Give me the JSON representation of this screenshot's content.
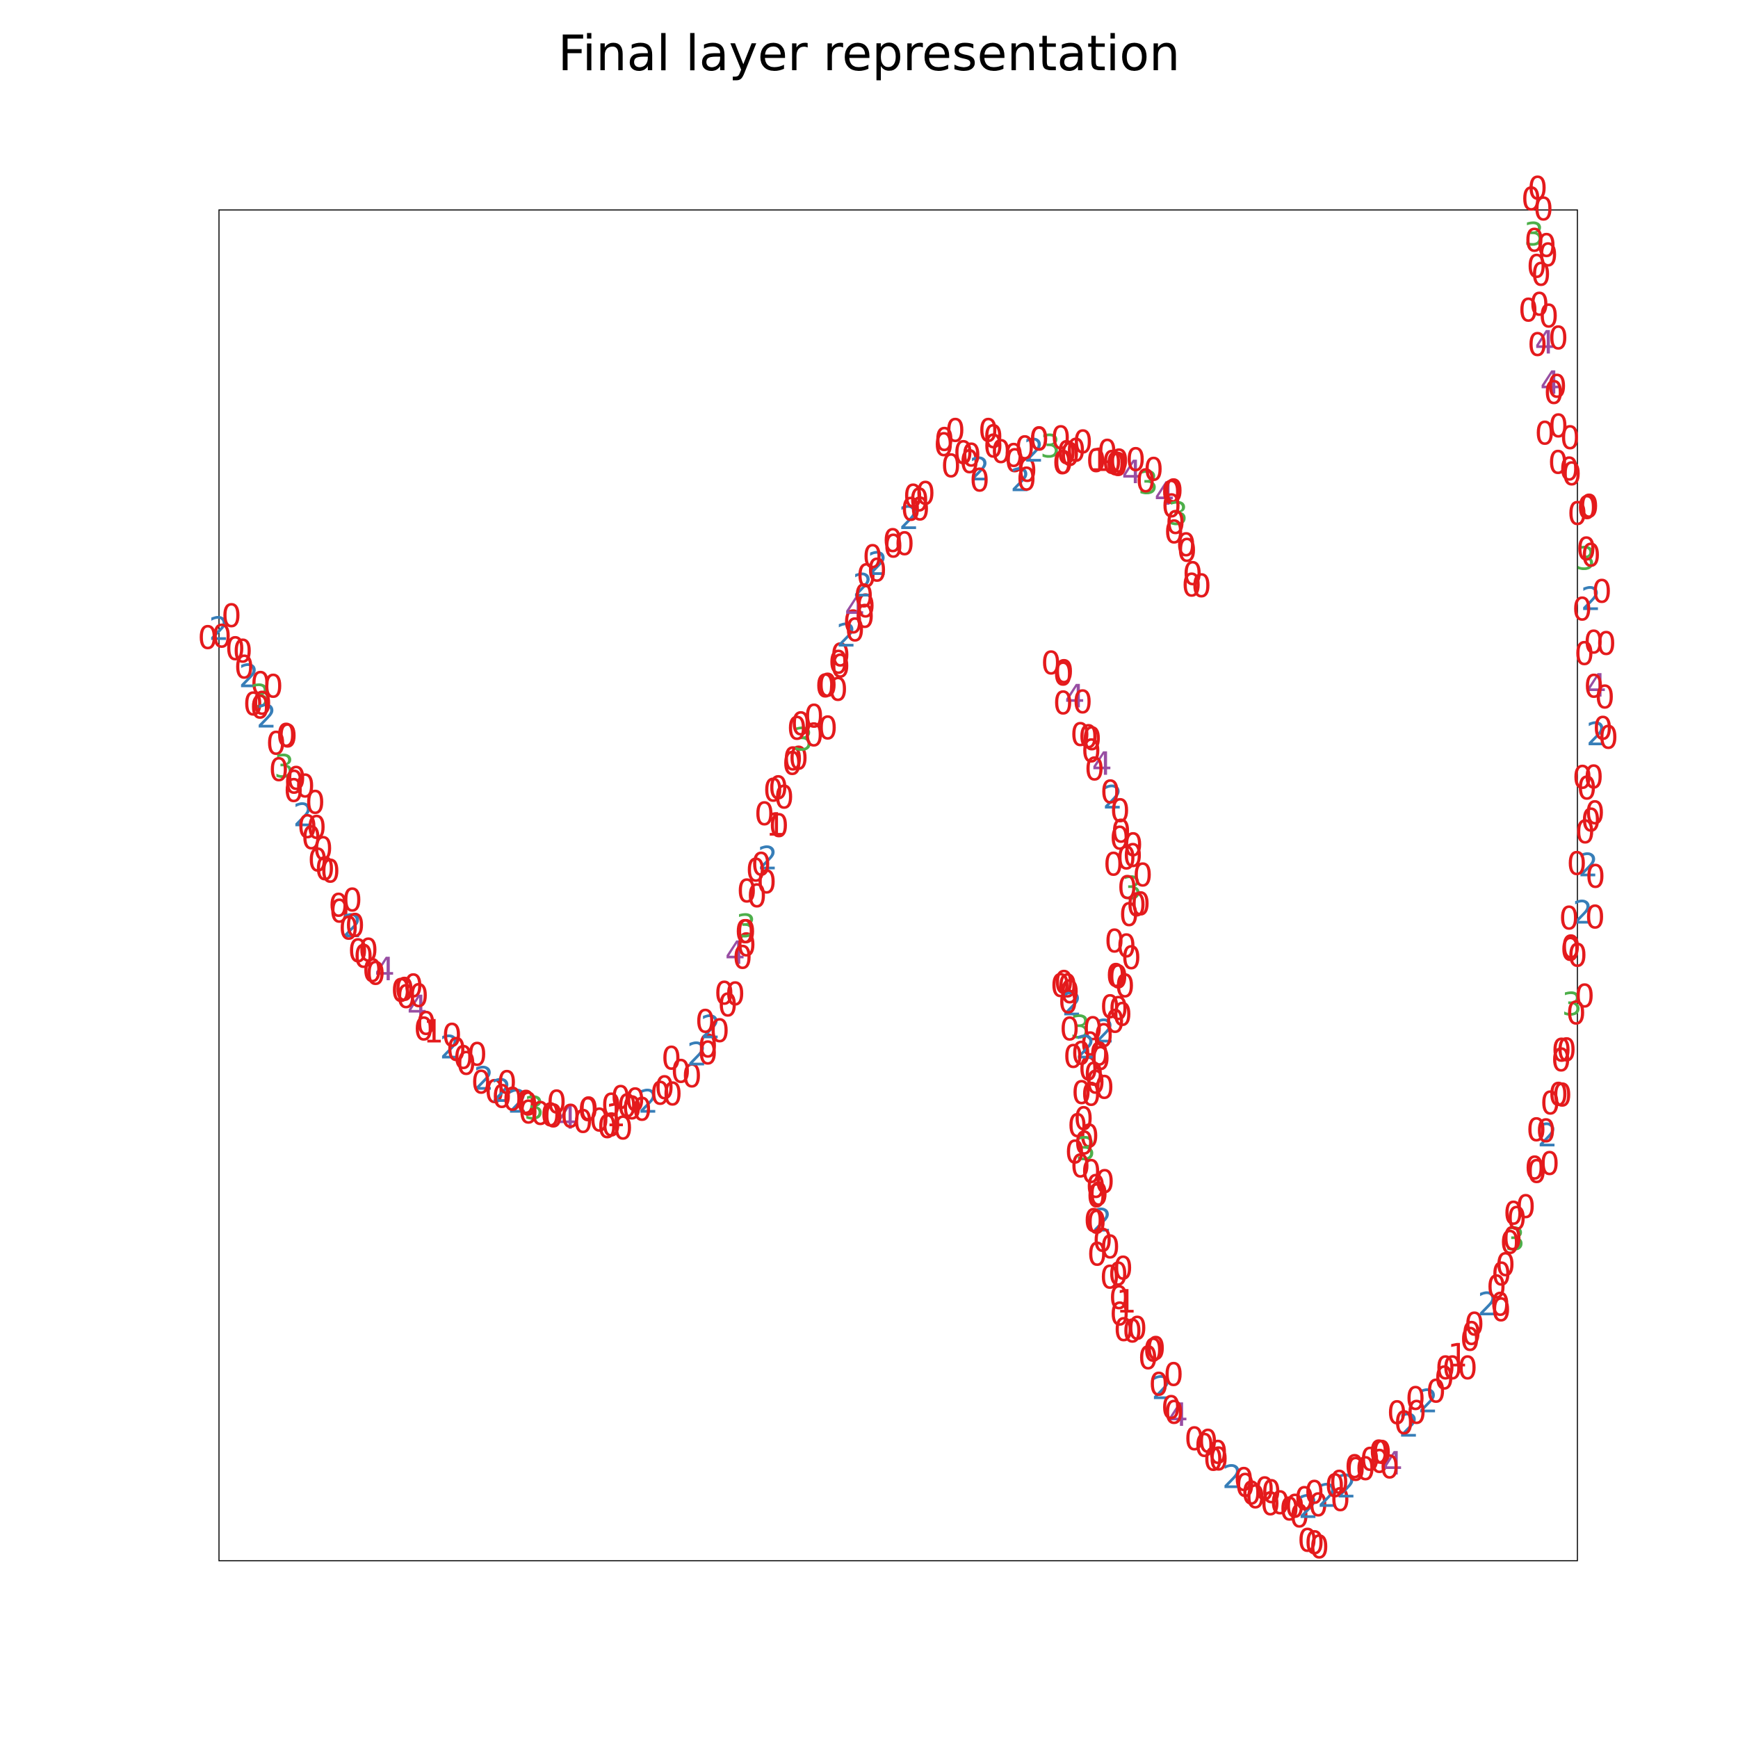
{
  "chart_data": {
    "type": "scatter",
    "title": "Final layer representation",
    "xlabel": "",
    "ylabel": "",
    "xlim": [
      0,
      1
    ],
    "ylim": [
      0,
      1
    ],
    "ticks": "none",
    "grid": false,
    "legend": "none",
    "marker": "digit-label",
    "colors": {
      "0": "#e41a1c",
      "1": "#e41a1c",
      "2": "#377eb8",
      "3": "#4daf4a",
      "4": "#984ea3"
    },
    "curve_points": [
      {
        "x": 0.0,
        "y": 0.69,
        "label": "2"
      },
      {
        "x": 0.012,
        "y": 0.675,
        "label": "0"
      },
      {
        "x": 0.022,
        "y": 0.655,
        "label": "2"
      },
      {
        "x": 0.03,
        "y": 0.64,
        "label": "3"
      },
      {
        "x": 0.035,
        "y": 0.625,
        "label": "2"
      },
      {
        "x": 0.042,
        "y": 0.605,
        "label": "0"
      },
      {
        "x": 0.048,
        "y": 0.588,
        "label": "3"
      },
      {
        "x": 0.055,
        "y": 0.57,
        "label": "0"
      },
      {
        "x": 0.062,
        "y": 0.552,
        "label": "2"
      },
      {
        "x": 0.068,
        "y": 0.535,
        "label": "0"
      },
      {
        "x": 0.078,
        "y": 0.512,
        "label": "0"
      },
      {
        "x": 0.088,
        "y": 0.485,
        "label": "0"
      },
      {
        "x": 0.098,
        "y": 0.47,
        "label": "2"
      },
      {
        "x": 0.11,
        "y": 0.452,
        "label": "0"
      },
      {
        "x": 0.122,
        "y": 0.438,
        "label": "4"
      },
      {
        "x": 0.134,
        "y": 0.422,
        "label": "0"
      },
      {
        "x": 0.146,
        "y": 0.41,
        "label": "4"
      },
      {
        "x": 0.158,
        "y": 0.392,
        "label": "1"
      },
      {
        "x": 0.17,
        "y": 0.38,
        "label": "2"
      },
      {
        "x": 0.182,
        "y": 0.368,
        "label": "0"
      },
      {
        "x": 0.195,
        "y": 0.357,
        "label": "2"
      },
      {
        "x": 0.208,
        "y": 0.348,
        "label": "2"
      },
      {
        "x": 0.22,
        "y": 0.34,
        "label": "2"
      },
      {
        "x": 0.232,
        "y": 0.335,
        "label": "3"
      },
      {
        "x": 0.244,
        "y": 0.33,
        "label": "0"
      },
      {
        "x": 0.256,
        "y": 0.328,
        "label": "4"
      },
      {
        "x": 0.268,
        "y": 0.325,
        "label": "0"
      },
      {
        "x": 0.28,
        "y": 0.326,
        "label": "0"
      },
      {
        "x": 0.292,
        "y": 0.33,
        "label": "1"
      },
      {
        "x": 0.304,
        "y": 0.335,
        "label": "0"
      },
      {
        "x": 0.316,
        "y": 0.34,
        "label": "2"
      },
      {
        "x": 0.328,
        "y": 0.35,
        "label": "0"
      },
      {
        "x": 0.34,
        "y": 0.362,
        "label": "0"
      },
      {
        "x": 0.352,
        "y": 0.375,
        "label": "2"
      },
      {
        "x": 0.362,
        "y": 0.395,
        "label": "2"
      },
      {
        "x": 0.372,
        "y": 0.42,
        "label": "0"
      },
      {
        "x": 0.38,
        "y": 0.45,
        "label": "4"
      },
      {
        "x": 0.388,
        "y": 0.47,
        "label": "3"
      },
      {
        "x": 0.396,
        "y": 0.492,
        "label": "0"
      },
      {
        "x": 0.404,
        "y": 0.52,
        "label": "2"
      },
      {
        "x": 0.41,
        "y": 0.545,
        "label": "1"
      },
      {
        "x": 0.416,
        "y": 0.565,
        "label": "0"
      },
      {
        "x": 0.422,
        "y": 0.59,
        "label": "0"
      },
      {
        "x": 0.43,
        "y": 0.608,
        "label": "3"
      },
      {
        "x": 0.438,
        "y": 0.625,
        "label": "0"
      },
      {
        "x": 0.448,
        "y": 0.648,
        "label": "0"
      },
      {
        "x": 0.456,
        "y": 0.665,
        "label": "0"
      },
      {
        "x": 0.462,
        "y": 0.685,
        "label": "2"
      },
      {
        "x": 0.468,
        "y": 0.705,
        "label": "4"
      },
      {
        "x": 0.474,
        "y": 0.722,
        "label": "2"
      },
      {
        "x": 0.485,
        "y": 0.738,
        "label": "2"
      },
      {
        "x": 0.496,
        "y": 0.755,
        "label": "0"
      },
      {
        "x": 0.508,
        "y": 0.772,
        "label": "2"
      },
      {
        "x": 0.52,
        "y": 0.79,
        "label": "0"
      },
      {
        "x": 0.534,
        "y": 0.83,
        "label": "0"
      },
      {
        "x": 0.548,
        "y": 0.82,
        "label": "0"
      },
      {
        "x": 0.56,
        "y": 0.808,
        "label": "2"
      },
      {
        "x": 0.57,
        "y": 0.832,
        "label": "0"
      },
      {
        "x": 0.585,
        "y": 0.818,
        "label": "0"
      },
      {
        "x": 0.59,
        "y": 0.8,
        "label": "2"
      },
      {
        "x": 0.6,
        "y": 0.822,
        "label": "2"
      },
      {
        "x": 0.612,
        "y": 0.825,
        "label": "3"
      },
      {
        "x": 0.624,
        "y": 0.82,
        "label": "0"
      },
      {
        "x": 0.636,
        "y": 0.828,
        "label": "0"
      },
      {
        "x": 0.648,
        "y": 0.815,
        "label": "1"
      },
      {
        "x": 0.66,
        "y": 0.812,
        "label": "0"
      },
      {
        "x": 0.672,
        "y": 0.806,
        "label": "4"
      },
      {
        "x": 0.684,
        "y": 0.798,
        "label": "3"
      },
      {
        "x": 0.696,
        "y": 0.79,
        "label": "4"
      },
      {
        "x": 0.706,
        "y": 0.775,
        "label": "3"
      },
      {
        "x": 0.712,
        "y": 0.752,
        "label": "0"
      },
      {
        "x": 0.716,
        "y": 0.722,
        "label": "0"
      },
      {
        "x": 0.622,
        "y": 0.658,
        "label": "0"
      },
      {
        "x": 0.63,
        "y": 0.64,
        "label": "4"
      },
      {
        "x": 0.64,
        "y": 0.61,
        "label": "0"
      },
      {
        "x": 0.65,
        "y": 0.59,
        "label": "4"
      },
      {
        "x": 0.658,
        "y": 0.565,
        "label": "2"
      },
      {
        "x": 0.664,
        "y": 0.54,
        "label": "0"
      },
      {
        "x": 0.668,
        "y": 0.52,
        "label": "0"
      },
      {
        "x": 0.672,
        "y": 0.498,
        "label": "3"
      },
      {
        "x": 0.67,
        "y": 0.478,
        "label": "0"
      },
      {
        "x": 0.668,
        "y": 0.455,
        "label": "0"
      },
      {
        "x": 0.662,
        "y": 0.432,
        "label": "0"
      },
      {
        "x": 0.656,
        "y": 0.41,
        "label": "0"
      },
      {
        "x": 0.652,
        "y": 0.392,
        "label": "2"
      },
      {
        "x": 0.648,
        "y": 0.375,
        "label": "0"
      },
      {
        "x": 0.644,
        "y": 0.36,
        "label": "0"
      },
      {
        "x": 0.642,
        "y": 0.345,
        "label": "0"
      },
      {
        "x": 0.622,
        "y": 0.428,
        "label": "0"
      },
      {
        "x": 0.628,
        "y": 0.412,
        "label": "2"
      },
      {
        "x": 0.634,
        "y": 0.395,
        "label": "3"
      },
      {
        "x": 0.638,
        "y": 0.38,
        "label": "2"
      },
      {
        "x": 0.632,
        "y": 0.322,
        "label": "0"
      },
      {
        "x": 0.638,
        "y": 0.305,
        "label": "3"
      },
      {
        "x": 0.642,
        "y": 0.288,
        "label": "0"
      },
      {
        "x": 0.646,
        "y": 0.27,
        "label": "0"
      },
      {
        "x": 0.65,
        "y": 0.252,
        "label": "2"
      },
      {
        "x": 0.656,
        "y": 0.232,
        "label": "0"
      },
      {
        "x": 0.662,
        "y": 0.212,
        "label": "0"
      },
      {
        "x": 0.668,
        "y": 0.192,
        "label": "1"
      },
      {
        "x": 0.676,
        "y": 0.172,
        "label": "0"
      },
      {
        "x": 0.684,
        "y": 0.15,
        "label": "0"
      },
      {
        "x": 0.694,
        "y": 0.128,
        "label": "2"
      },
      {
        "x": 0.706,
        "y": 0.108,
        "label": "4"
      },
      {
        "x": 0.718,
        "y": 0.09,
        "label": "0"
      },
      {
        "x": 0.732,
        "y": 0.075,
        "label": "0"
      },
      {
        "x": 0.746,
        "y": 0.062,
        "label": "2"
      },
      {
        "x": 0.76,
        "y": 0.05,
        "label": "0"
      },
      {
        "x": 0.774,
        "y": 0.042,
        "label": "0"
      },
      {
        "x": 0.788,
        "y": 0.038,
        "label": "0"
      },
      {
        "x": 0.802,
        "y": 0.04,
        "label": "2"
      },
      {
        "x": 0.81,
        "y": 0.01,
        "label": "0"
      },
      {
        "x": 0.816,
        "y": 0.048,
        "label": "2"
      },
      {
        "x": 0.83,
        "y": 0.055,
        "label": "2"
      },
      {
        "x": 0.844,
        "y": 0.068,
        "label": "0"
      },
      {
        "x": 0.856,
        "y": 0.08,
        "label": "0"
      },
      {
        "x": 0.864,
        "y": 0.072,
        "label": "4"
      },
      {
        "x": 0.876,
        "y": 0.1,
        "label": "2"
      },
      {
        "x": 0.89,
        "y": 0.118,
        "label": "2"
      },
      {
        "x": 0.902,
        "y": 0.135,
        "label": "0"
      },
      {
        "x": 0.912,
        "y": 0.152,
        "label": "1"
      },
      {
        "x": 0.922,
        "y": 0.168,
        "label": "0"
      },
      {
        "x": 0.934,
        "y": 0.19,
        "label": "2"
      },
      {
        "x": 0.944,
        "y": 0.212,
        "label": "0"
      },
      {
        "x": 0.954,
        "y": 0.238,
        "label": "3"
      },
      {
        "x": 0.962,
        "y": 0.262,
        "label": "0"
      },
      {
        "x": 0.97,
        "y": 0.288,
        "label": "0"
      },
      {
        "x": 0.978,
        "y": 0.315,
        "label": "2"
      },
      {
        "x": 0.986,
        "y": 0.345,
        "label": "0"
      },
      {
        "x": 0.992,
        "y": 0.378,
        "label": "0"
      },
      {
        "x": 0.996,
        "y": 0.412,
        "label": "3"
      },
      {
        "x": 1.0,
        "y": 0.448,
        "label": "0"
      },
      {
        "x": 1.004,
        "y": 0.48,
        "label": "2"
      },
      {
        "x": 1.008,
        "y": 0.515,
        "label": "2"
      },
      {
        "x": 1.01,
        "y": 0.548,
        "label": "0"
      },
      {
        "x": 1.012,
        "y": 0.58,
        "label": "0"
      },
      {
        "x": 1.014,
        "y": 0.612,
        "label": "2"
      },
      {
        "x": 1.014,
        "y": 0.648,
        "label": "4"
      },
      {
        "x": 1.012,
        "y": 0.68,
        "label": "0"
      },
      {
        "x": 1.01,
        "y": 0.712,
        "label": "2"
      },
      {
        "x": 1.006,
        "y": 0.742,
        "label": "3"
      },
      {
        "x": 1.0,
        "y": 0.775,
        "label": "0"
      },
      {
        "x": 0.994,
        "y": 0.808,
        "label": "0"
      },
      {
        "x": 0.986,
        "y": 0.84,
        "label": "0"
      },
      {
        "x": 0.98,
        "y": 0.872,
        "label": "4"
      },
      {
        "x": 0.976,
        "y": 0.902,
        "label": "4"
      },
      {
        "x": 0.972,
        "y": 0.93,
        "label": "0"
      },
      {
        "x": 0.97,
        "y": 0.958,
        "label": "0"
      },
      {
        "x": 0.968,
        "y": 0.982,
        "label": "3"
      },
      {
        "x": 0.966,
        "y": 1.008,
        "label": "0"
      }
    ]
  }
}
